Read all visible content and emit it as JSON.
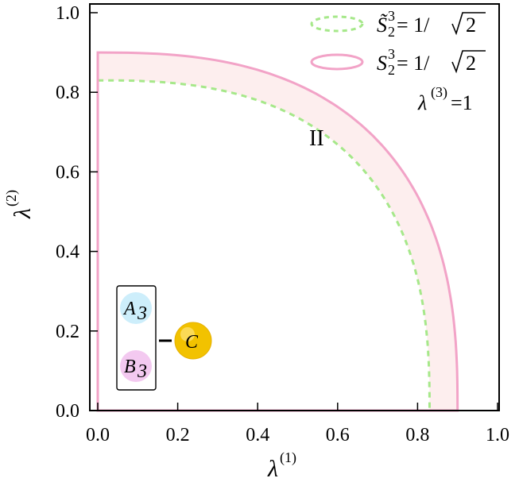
{
  "chart_data": {
    "type": "area",
    "xlim": [
      0,
      1.0
    ],
    "ylim": [
      0,
      1.0
    ],
    "xticks": [
      "0.0",
      "0.2",
      "0.4",
      "0.6",
      "0.8",
      "1.0"
    ],
    "yticks": [
      "0.0",
      "0.2",
      "0.4",
      "0.6",
      "0.8",
      "1.0"
    ],
    "xlabel": "λ",
    "xlabel_sup": "(1)",
    "ylabel": "λ",
    "ylabel_sup": "(2)",
    "grid": false,
    "legend_position": "top-right",
    "series": [
      {
        "name": "S̃₂³ = 1/√2",
        "style": "dashed",
        "color": "#a6e88a",
        "outer_radius": 0.83
      },
      {
        "name": "S₂³ = 1/√2",
        "style": "solid",
        "color": "#f2a3c7",
        "outer_radius": 0.9
      }
    ],
    "fill_between": {
      "color": "#fdeeee",
      "between": [
        0.83,
        0.9
      ]
    },
    "annotations": {
      "condition": "λ(3)=1",
      "region_label": "II"
    },
    "inset": {
      "a_label": "A",
      "a_sub": "3",
      "b_label": "B",
      "b_sub": "3",
      "c_label": "C",
      "a_color": "#cdeefb",
      "b_color": "#f3c9f0",
      "c_color": "#f2c200"
    }
  },
  "legend": {
    "entry1_pre": "S̃",
    "entry1_sub": "2",
    "entry1_sup": "3",
    "entry1_rhs": "= 1/",
    "entry1_rad": "2",
    "entry2_pre": "S",
    "entry2_sub": "2",
    "entry2_sup": "3",
    "entry2_rhs": "= 1/",
    "entry2_rad": "2",
    "cond_lambda": "λ",
    "cond_sup": "(3)",
    "cond_rhs": "=1"
  }
}
